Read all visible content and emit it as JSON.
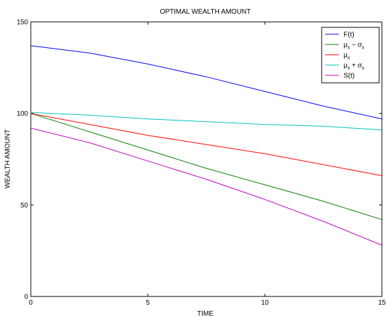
{
  "chart_data": {
    "type": "line",
    "title": "OPTIMAL WEALTH AMOUNT",
    "xlabel": "TIME",
    "ylabel": "WEALTH AMOUNT",
    "xlim": [
      0,
      15
    ],
    "ylim": [
      0,
      150
    ],
    "xticks": [
      0,
      5,
      10,
      15
    ],
    "yticks": [
      0,
      50,
      100,
      150
    ],
    "grid": false,
    "legend_position": "top-right",
    "x": [
      0,
      2.5,
      5,
      7.5,
      10,
      12.5,
      15
    ],
    "series": [
      {
        "name": "F(t)",
        "legend": {
          "base": "F(t)",
          "sub": "",
          "op": "",
          "base2": "",
          "sub2": ""
        },
        "color": "#0000ff",
        "values": [
          137,
          133,
          127,
          120,
          112,
          104,
          97
        ]
      },
      {
        "name": "μx − σx",
        "legend": {
          "base": "μ",
          "sub": "x",
          "op": " − ",
          "base2": "σ",
          "sub2": "x"
        },
        "color": "#008000",
        "values": [
          100,
          90,
          80,
          70,
          61,
          52,
          42
        ]
      },
      {
        "name": "μx",
        "legend": {
          "base": "μ",
          "sub": "x",
          "op": "",
          "base2": "",
          "sub2": ""
        },
        "color": "#ff0000",
        "values": [
          100,
          94,
          88,
          83,
          78,
          72,
          66
        ]
      },
      {
        "name": "μx + σx",
        "legend": {
          "base": "μ",
          "sub": "x",
          "op": " + ",
          "base2": "σ",
          "sub2": "x"
        },
        "color": "#00bfbf",
        "values": [
          100.5,
          99,
          97,
          95.5,
          94,
          93,
          91
        ]
      },
      {
        "name": "S(t)",
        "legend": {
          "base": "S(t)",
          "sub": "",
          "op": "",
          "base2": "",
          "sub2": ""
        },
        "color": "#bf00bf",
        "values": [
          92,
          84,
          74,
          64,
          53,
          41,
          28
        ]
      }
    ]
  }
}
